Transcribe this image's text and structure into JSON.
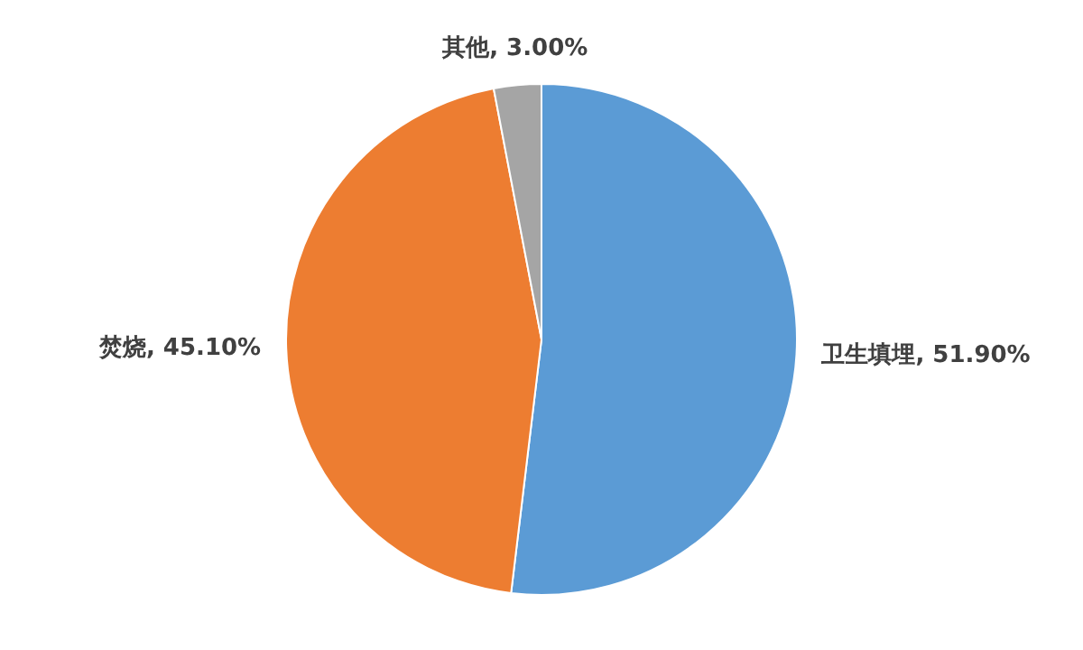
{
  "chart_data": {
    "type": "pie",
    "categories": [
      "卫生填埋",
      "焚烧",
      "其他"
    ],
    "values": [
      51.9,
      45.1,
      3.0
    ],
    "colors": [
      "#5b9bd5",
      "#ed7d31",
      "#a5a5a5"
    ],
    "value_labels": [
      "51.90%",
      "45.10%",
      "3.00%"
    ]
  }
}
